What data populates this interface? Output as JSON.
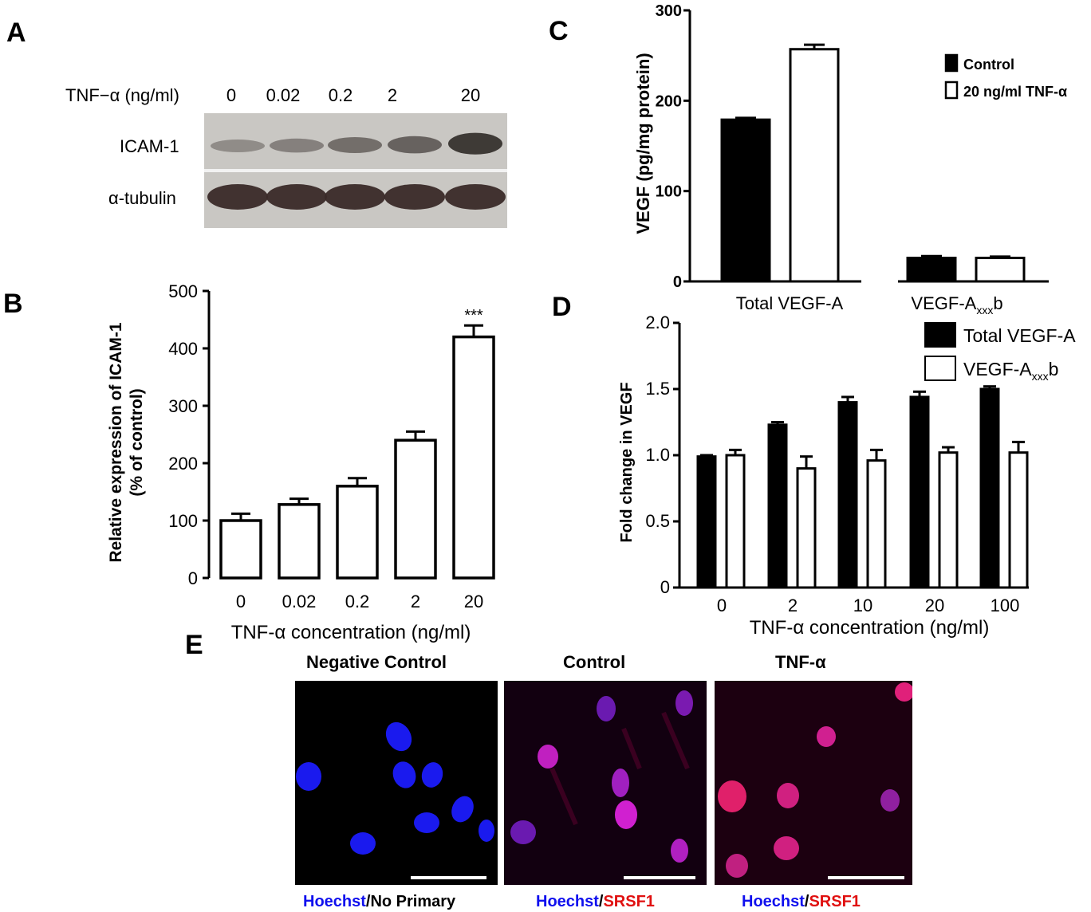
{
  "panel_a": {
    "letter": "A",
    "header_label": "TNF−α (ng/ml)",
    "lanes": [
      "0",
      "0.02",
      "0.2",
      "2",
      "20"
    ],
    "row1_label": "ICAM-1",
    "row2_label": "α-tubulin",
    "icam1_band_intensity": [
      0.25,
      0.35,
      0.5,
      0.6,
      0.95
    ],
    "tubulin_band_intensity": [
      1,
      1,
      1,
      1,
      1
    ]
  },
  "panel_b": {
    "letter": "B"
  },
  "panel_c": {
    "letter": "C"
  },
  "panel_d": {
    "letter": "D"
  },
  "panel_e": {
    "letter": "E",
    "titles": [
      "Negative Control",
      "Control",
      "TNF-α"
    ],
    "captions": [
      {
        "blue": "Hoechst",
        "sep": "/",
        "rest": "No Primary",
        "rest_color": "#000000"
      },
      {
        "blue": "Hoechst",
        "sep": "/",
        "rest": "SRSF1",
        "rest_color": "#e01010"
      },
      {
        "blue": "Hoechst",
        "sep": "/",
        "rest": "SRSF1",
        "rest_color": "#e01010"
      }
    ],
    "colors": {
      "hoechst": "#1010ee",
      "srsf1": "#e01010"
    }
  },
  "chart_data": [
    {
      "panel": "B",
      "type": "bar",
      "categories": [
        "0",
        "0.02",
        "0.2",
        "2",
        "20"
      ],
      "values": [
        100,
        128,
        160,
        240,
        420
      ],
      "errors": [
        12,
        10,
        14,
        15,
        20
      ],
      "annotations": [
        "",
        "",
        "",
        "",
        "***"
      ],
      "xlabel": "TNF-α concentration (ng/ml)",
      "ylabel": "Relative expression of ICAM-1",
      "ylabel2": "(% of control)",
      "yticks": [
        "0",
        "100",
        "200",
        "300",
        "400",
        "500"
      ],
      "ylim": [
        0,
        500
      ],
      "bar_fill": "#ffffff"
    },
    {
      "panel": "C",
      "type": "bar",
      "categories": [
        "Total VEGF-A",
        "VEGF-A"
      ],
      "category_subscripts": [
        "",
        "xxx"
      ],
      "category_suffix": [
        "",
        "b"
      ],
      "series": [
        {
          "name": "Control",
          "values": [
            179,
            26
          ],
          "errors": [
            2,
            2
          ],
          "fill": "#000000"
        },
        {
          "name": "20 ng/ml TNF-α",
          "values": [
            257,
            26
          ],
          "errors": [
            5,
            1.5
          ],
          "fill": "#ffffff"
        }
      ],
      "ylabel": "VEGF (pg/mg protein)",
      "yticks": [
        "0",
        "100",
        "200",
        "300"
      ],
      "ylim": [
        0,
        300
      ],
      "legend_position": "top-right"
    },
    {
      "panel": "D",
      "type": "bar",
      "categories": [
        "0",
        "2",
        "10",
        "20",
        "100"
      ],
      "series": [
        {
          "name": "Total VEGF-A",
          "values": [
            0.99,
            1.23,
            1.4,
            1.44,
            1.5
          ],
          "errors": [
            0.01,
            0.02,
            0.04,
            0.04,
            0.02
          ],
          "fill": "#000000"
        },
        {
          "name": "VEGF-A",
          "name_sub": "xxx",
          "name_suffix": "b",
          "values": [
            1.0,
            0.9,
            0.96,
            1.02,
            1.02
          ],
          "errors": [
            0.04,
            0.09,
            0.08,
            0.04,
            0.08
          ],
          "fill": "#ffffff"
        }
      ],
      "xlabel": "TNF-α concentration (ng/ml)",
      "ylabel": "Fold change in VEGF",
      "yticks": [
        "0",
        "0.5",
        "1.0",
        "1.5",
        "2.0"
      ],
      "ylim": [
        0,
        2.0
      ],
      "legend_position": "top-right"
    }
  ]
}
